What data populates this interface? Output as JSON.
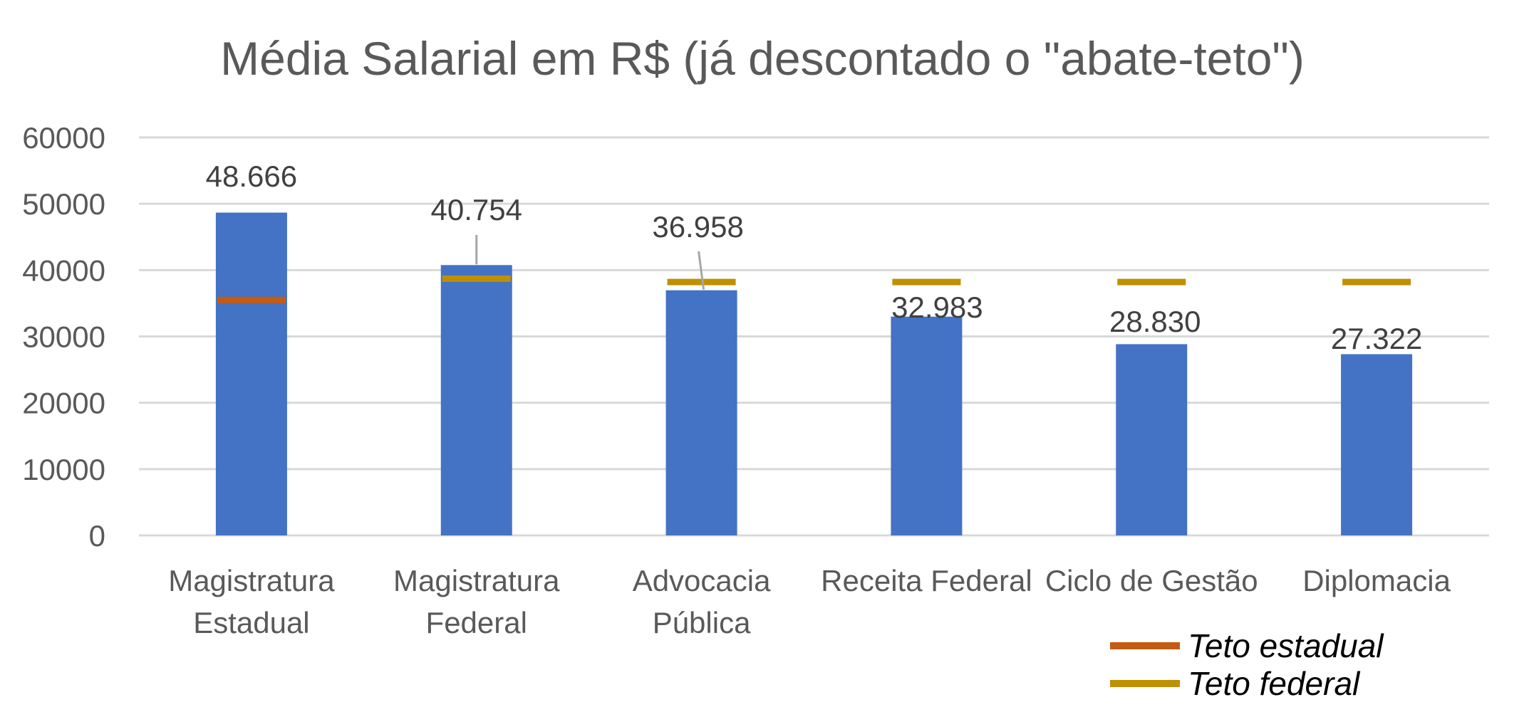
{
  "colors": {
    "bar": "#4472c4",
    "teto_estadual": "#c55a11",
    "teto_federal": "#bf9000",
    "grid": "#d9d9d9"
  },
  "chart_data": {
    "type": "bar",
    "title": "Média Salarial em R$ (já descontado o \"abate-teto\")",
    "categories": [
      [
        "Magistratura",
        "Estadual"
      ],
      [
        "Magistratura",
        "Federal"
      ],
      [
        "Advocacia",
        "Pública"
      ],
      [
        "Receita Federal"
      ],
      [
        "Ciclo de Gestão"
      ],
      [
        "Diplomacia"
      ]
    ],
    "values": [
      48666,
      40754,
      36958,
      32983,
      28830,
      27322
    ],
    "data_labels": [
      "48.666",
      "40.754",
      "36.958",
      "32.983",
      "28.830",
      "27.322"
    ],
    "ylim": [
      0,
      60000
    ],
    "yticks": [
      0,
      10000,
      20000,
      30000,
      40000,
      50000,
      60000
    ],
    "ytick_labels": [
      "0",
      "10000",
      "20000",
      "30000",
      "40000",
      "50000",
      "60000"
    ],
    "grid": true,
    "markers": [
      {
        "name": "Teto estadual",
        "category_index": 0,
        "value": 35500
      },
      {
        "name": "Teto federal",
        "category_index": 1,
        "value": 38700
      },
      {
        "name": "Teto federal",
        "category_index": 2,
        "value": 38200
      },
      {
        "name": "Teto federal",
        "category_index": 3,
        "value": 38200
      },
      {
        "name": "Teto federal",
        "category_index": 4,
        "value": 38200
      },
      {
        "name": "Teto federal",
        "category_index": 5,
        "value": 38200
      }
    ],
    "legend": {
      "position": "bottom-right",
      "items": [
        {
          "label": "Teto estadual",
          "color": "#c55a11"
        },
        {
          "label": "Teto federal",
          "color": "#bf9000"
        }
      ]
    }
  }
}
